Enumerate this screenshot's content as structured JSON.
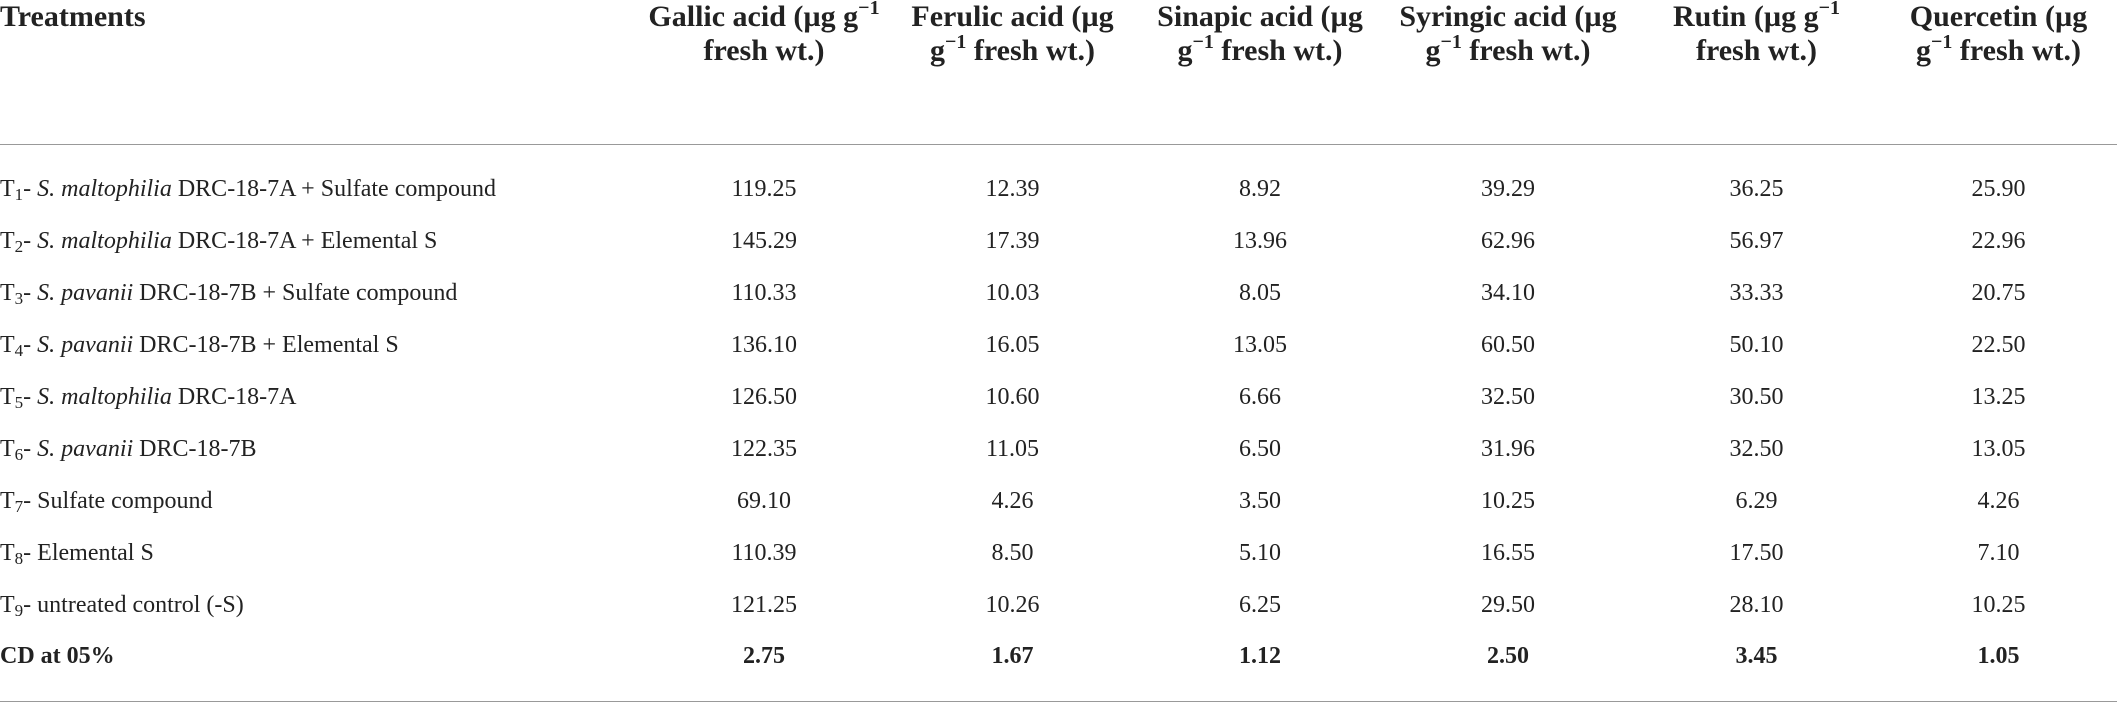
{
  "table": {
    "header": [
      [
        {
          "text": "Treatments"
        }
      ],
      [
        {
          "text": "Gallic acid (µg g"
        },
        {
          "sup": "−1"
        },
        {
          "text": " fresh wt.)"
        }
      ],
      [
        {
          "text": "Ferulic acid (µg g"
        },
        {
          "sup": "−1"
        },
        {
          "text": " fresh wt.)"
        }
      ],
      [
        {
          "text": "Sinapic acid (µg g"
        },
        {
          "sup": "−1"
        },
        {
          "text": " fresh wt.)"
        }
      ],
      [
        {
          "text": "Syringic acid (µg g"
        },
        {
          "sup": "−1"
        },
        {
          "text": " fresh wt.)"
        }
      ],
      [
        {
          "text": "Rutin (µg g"
        },
        {
          "sup": "−1"
        },
        {
          "text": " fresh wt.)"
        }
      ],
      [
        {
          "text": "Quercetin (µg g"
        },
        {
          "sup": "−1"
        },
        {
          "text": " fresh wt.)"
        }
      ]
    ],
    "rows": [
      {
        "label": [
          {
            "text": "T"
          },
          {
            "sub": "1"
          },
          {
            "text": "- "
          },
          {
            "italic": "S. maltophilia"
          },
          {
            "text": " DRC-18-7A + Sulfate compound"
          }
        ],
        "values": [
          "119.25",
          "12.39",
          "8.92",
          "39.29",
          "36.25",
          "25.90"
        ]
      },
      {
        "label": [
          {
            "text": "T"
          },
          {
            "sub": "2"
          },
          {
            "text": "- "
          },
          {
            "italic": "S. maltophilia"
          },
          {
            "text": " DRC-18-7A + Elemental S"
          }
        ],
        "values": [
          "145.29",
          "17.39",
          "13.96",
          "62.96",
          "56.97",
          "22.96"
        ]
      },
      {
        "label": [
          {
            "text": "T"
          },
          {
            "sub": "3"
          },
          {
            "text": "- "
          },
          {
            "italic": "S. pavanii"
          },
          {
            "text": " DRC-18-7B + Sulfate compound"
          }
        ],
        "values": [
          "110.33",
          "10.03",
          "8.05",
          "34.10",
          "33.33",
          "20.75"
        ]
      },
      {
        "label": [
          {
            "text": "T"
          },
          {
            "sub": "4"
          },
          {
            "text": "- "
          },
          {
            "italic": "S. pavanii"
          },
          {
            "text": " DRC-18-7B + Elemental S"
          }
        ],
        "values": [
          "136.10",
          "16.05",
          "13.05",
          "60.50",
          "50.10",
          "22.50"
        ]
      },
      {
        "label": [
          {
            "text": "T"
          },
          {
            "sub": "5"
          },
          {
            "text": "- "
          },
          {
            "italic": "S. maltophilia"
          },
          {
            "text": " DRC-18-7A"
          }
        ],
        "values": [
          "126.50",
          "10.60",
          "6.66",
          "32.50",
          "30.50",
          "13.25"
        ]
      },
      {
        "label": [
          {
            "text": "T"
          },
          {
            "sub": "6"
          },
          {
            "text": "- "
          },
          {
            "italic": "S. pavanii"
          },
          {
            "text": " DRC-18-7B"
          }
        ],
        "values": [
          "122.35",
          "11.05",
          "6.50",
          "31.96",
          "32.50",
          "13.05"
        ]
      },
      {
        "label": [
          {
            "text": "T"
          },
          {
            "sub": "7"
          },
          {
            "text": "- Sulfate compound"
          }
        ],
        "values": [
          "69.10",
          "4.26",
          "3.50",
          "10.25",
          "6.29",
          "4.26"
        ]
      },
      {
        "label": [
          {
            "text": "T"
          },
          {
            "sub": "8"
          },
          {
            "text": "- Elemental S"
          }
        ],
        "values": [
          "110.39",
          "8.50",
          "5.10",
          "16.55",
          "17.50",
          "7.10"
        ]
      },
      {
        "label": [
          {
            "text": "T"
          },
          {
            "sub": "9"
          },
          {
            "text": "- untreated control (-S)"
          }
        ],
        "values": [
          "121.25",
          "10.26",
          "6.25",
          "29.50",
          "28.10",
          "10.25"
        ]
      },
      {
        "label": [
          {
            "text": "CD at 05%"
          }
        ],
        "values": [
          "2.75",
          "1.67",
          "1.12",
          "2.50",
          "3.45",
          "1.05"
        ]
      }
    ]
  }
}
